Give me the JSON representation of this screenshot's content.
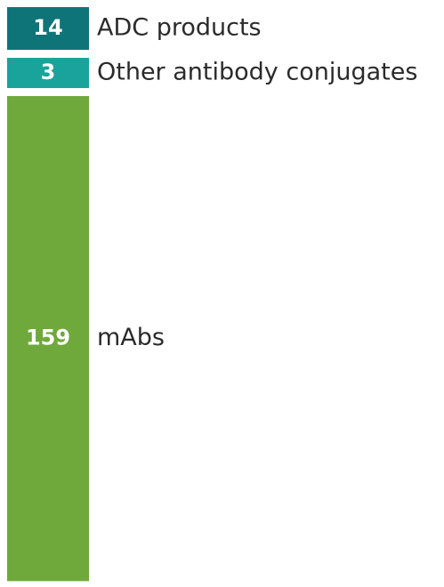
{
  "chart_data": {
    "type": "stacked-bar",
    "categories": [
      null
    ],
    "series": [
      {
        "name": "ADC products",
        "color": "#0f7478",
        "values": [
          14
        ]
      },
      {
        "name": "Other antibody conjugates",
        "color": "#19a39b",
        "values": [
          3
        ]
      },
      {
        "name": "mAbs",
        "color": "#6fa83b",
        "values": [
          159
        ]
      }
    ]
  }
}
